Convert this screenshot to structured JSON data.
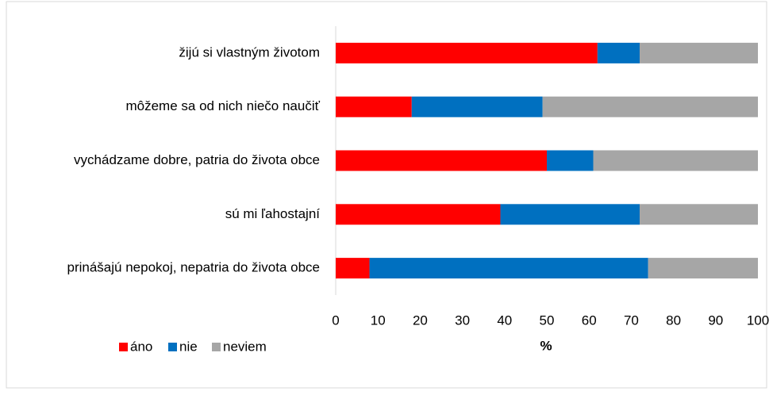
{
  "chart_data": {
    "type": "stacked_bar_horizontal",
    "categories": [
      "žijú si vlastným životom",
      "môžeme sa od nich niečo naučiť",
      "vychádzame dobre, patria do života obce",
      "sú mi ľahostajní",
      "prinášajú nepokoj, nepatria do života obce"
    ],
    "series": [
      {
        "name": "áno",
        "color": "#ff0000",
        "values": [
          62,
          18,
          50,
          39,
          8
        ]
      },
      {
        "name": "nie",
        "color": "#0070c0",
        "values": [
          10,
          31,
          11,
          33,
          66
        ]
      },
      {
        "name": "neviem",
        "color": "#a6a6a6",
        "values": [
          28,
          51,
          39,
          28,
          26
        ]
      }
    ],
    "x_label": "%",
    "xlim": [
      0,
      100
    ],
    "xticks": [
      0,
      10,
      20,
      30,
      40,
      50,
      60,
      70,
      80,
      90,
      100
    ],
    "grid": false,
    "legend": "bottom-left"
  }
}
